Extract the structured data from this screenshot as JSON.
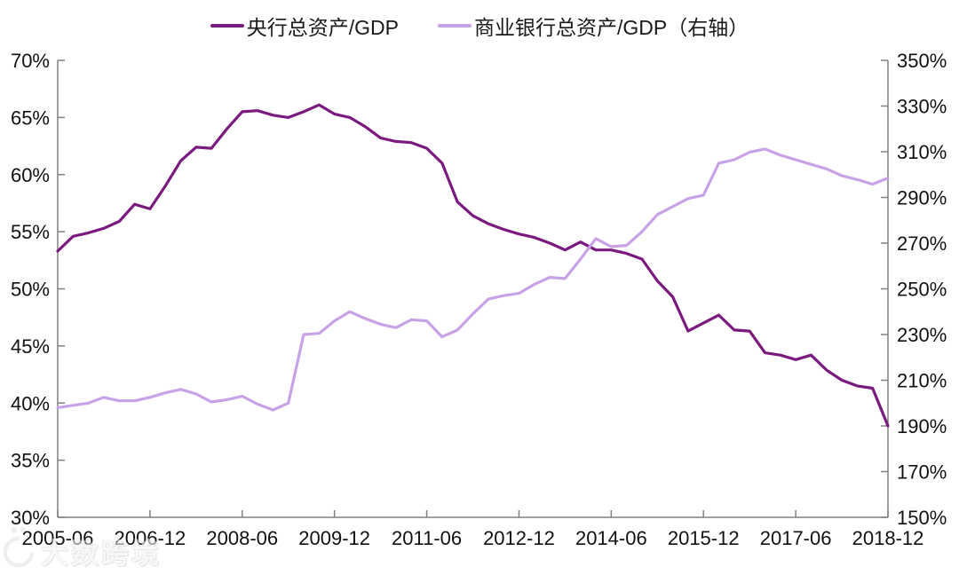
{
  "legend": {
    "items": [
      {
        "label": "央行总资产/GDP"
      },
      {
        "label": "商业银行总资产/GDP（右轴）"
      }
    ]
  },
  "watermark": {
    "text": "大数跨境"
  },
  "colors": {
    "central_bank_line": "#7A1A7E",
    "commercial_bank_line": "#C8A2E6",
    "axis": "#808080",
    "tick_text": "#111111"
  },
  "chart_data": {
    "type": "line",
    "title": "",
    "grid": false,
    "legend_position": "top-center",
    "x_labels": [
      "2005-06",
      "2005-09",
      "2005-12",
      "2006-03",
      "2006-06",
      "2006-09",
      "2006-12",
      "2007-03",
      "2007-06",
      "2007-09",
      "2007-12",
      "2008-03",
      "2008-06",
      "2008-09",
      "2008-12",
      "2009-03",
      "2009-06",
      "2009-09",
      "2009-12",
      "2010-03",
      "2010-06",
      "2010-09",
      "2010-12",
      "2011-03",
      "2011-06",
      "2011-09",
      "2011-12",
      "2012-03",
      "2012-06",
      "2012-09",
      "2012-12",
      "2013-03",
      "2013-06",
      "2013-09",
      "2013-12",
      "2014-03",
      "2014-06",
      "2014-09",
      "2014-12",
      "2015-03",
      "2015-06",
      "2015-09",
      "2015-12",
      "2016-03",
      "2016-06",
      "2016-09",
      "2016-12",
      "2017-03",
      "2017-06",
      "2017-09",
      "2017-12",
      "2018-03",
      "2018-06",
      "2018-09",
      "2018-12"
    ],
    "x_tick_indices": [
      0,
      6,
      12,
      18,
      24,
      30,
      36,
      42,
      48,
      54
    ],
    "x_tick_labels": [
      "2005-06",
      "2006-12",
      "2008-06",
      "2009-12",
      "2011-06",
      "2012-12",
      "2014-06",
      "2015-12",
      "2017-06",
      "2018-12"
    ],
    "left_axis": {
      "min": 30,
      "max": 70,
      "step": 5,
      "tick_labels": [
        "70%",
        "65%",
        "60%",
        "55%",
        "50%",
        "45%",
        "40%",
        "35%",
        "30%"
      ]
    },
    "right_axis": {
      "min": 150,
      "max": 350,
      "step": 20,
      "tick_labels": [
        "350%",
        "330%",
        "310%",
        "290%",
        "270%",
        "250%",
        "230%",
        "210%",
        "190%",
        "170%",
        "150%"
      ]
    },
    "series": [
      {
        "key": "central-bank-assets-gdp",
        "name": "央行总资产/GDP",
        "axis": "left",
        "color": "#7A1A7E",
        "unit": "%",
        "values": [
          53.3,
          54.6,
          54.9,
          55.3,
          55.9,
          57.4,
          57.0,
          59.0,
          61.2,
          62.4,
          62.3,
          64.0,
          65.5,
          65.6,
          65.2,
          65.0,
          65.5,
          66.1,
          65.3,
          65.0,
          64.2,
          63.2,
          62.9,
          62.8,
          62.3,
          61.0,
          57.6,
          56.4,
          55.7,
          55.2,
          54.8,
          54.5,
          54.0,
          53.4,
          54.1,
          53.4,
          53.4,
          53.1,
          52.6,
          50.7,
          49.3,
          46.3,
          47.0,
          47.7,
          46.4,
          46.3,
          44.4,
          44.2,
          43.8,
          44.2,
          42.9,
          42.0,
          41.5,
          41.3,
          38.0
        ]
      },
      {
        "key": "commercial-bank-assets-gdp",
        "name": "商业银行总资产/GDP（右轴）",
        "axis": "right",
        "color": "#C8A2E6",
        "unit": "%",
        "values": [
          198,
          199,
          200,
          202.5,
          201,
          201,
          202.5,
          204.5,
          206,
          204,
          200.5,
          201.5,
          203,
          199.5,
          197,
          200,
          230,
          230.5,
          236,
          240,
          237,
          234.5,
          233,
          236.5,
          236,
          229,
          232,
          239,
          245.5,
          247,
          248,
          252,
          255,
          254.5,
          263,
          272,
          268.5,
          269,
          275,
          282.5,
          286,
          289.5,
          291,
          305,
          306.5,
          309.8,
          311.2,
          308.5,
          306.5,
          304.5,
          302.5,
          299.5,
          297.8,
          295.8,
          298.5
        ]
      }
    ]
  }
}
